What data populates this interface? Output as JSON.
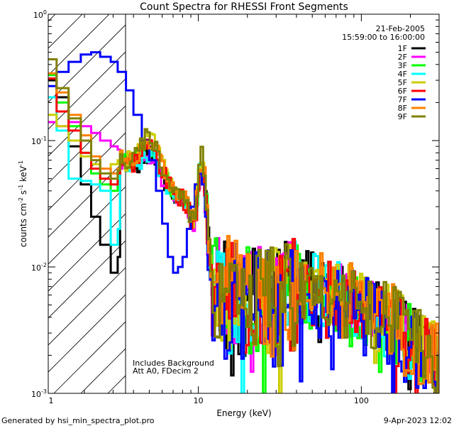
{
  "chart_data": {
    "type": "line",
    "title": "Count Spectra for RHESSI Front Segments",
    "xlabel": "Energy (keV)",
    "ylabel_parts": {
      "a": "counts cm",
      "b": "-2",
      "c": " s",
      "d": "-1",
      "e": " keV",
      "f": "-1"
    },
    "xscale": "log",
    "yscale": "log",
    "xlim": [
      1.2,
      300
    ],
    "ylim": [
      0.001,
      1
    ],
    "x_ticks": [
      {
        "value": 1,
        "label": "1"
      },
      {
        "value": 10,
        "label": "10"
      },
      {
        "value": 100,
        "label": "100"
      }
    ],
    "y_ticks": [
      {
        "value": 0.001,
        "base": "10",
        "exp": "-3"
      },
      {
        "value": 0.01,
        "base": "10",
        "exp": "-2"
      },
      {
        "value": 0.1,
        "base": "10",
        "exp": "-1"
      },
      {
        "value": 1,
        "base": "10",
        "exp": "0"
      }
    ],
    "date": "21-Feb-2005",
    "time_range": "15:59:00 to 16:00:00",
    "annotation_line1": "Includes Background",
    "annotation_line2": "Att A0, FDecim 2",
    "hatched_below_keV": 3,
    "legend_position": "top-right",
    "series": [
      {
        "name": "1F",
        "color": "#000000",
        "bump": 0.55,
        "peak": 1.0,
        "noise": 1.0,
        "knee": 1.0,
        "seed": 1,
        "points": [
          [
            1.2,
            0.3
          ],
          [
            1.35,
            0.22
          ],
          [
            1.6,
            0.09
          ],
          [
            1.9,
            0.045
          ],
          [
            2.2,
            0.025
          ],
          [
            2.5,
            0.015
          ],
          [
            2.9,
            0.009
          ],
          [
            3.2,
            0.012
          ]
        ]
      },
      {
        "name": "2F",
        "color": "#ff00ff",
        "bump": 0.55,
        "peak": 0.8,
        "noise": 1.0,
        "knee": 1.0,
        "seed": 2,
        "points": [
          [
            1.2,
            0.14
          ],
          [
            1.35,
            0.13
          ],
          [
            1.6,
            0.14
          ],
          [
            1.9,
            0.13
          ],
          [
            2.2,
            0.115
          ],
          [
            2.5,
            0.1
          ],
          [
            2.9,
            0.09
          ],
          [
            3.2,
            0.085
          ]
        ]
      },
      {
        "name": "3F",
        "color": "#00ff00",
        "bump": 0.9,
        "peak": 1.2,
        "noise": 1.0,
        "knee": 1.0,
        "seed": 3,
        "points": [
          [
            1.2,
            0.33
          ],
          [
            1.35,
            0.2
          ],
          [
            1.6,
            0.13
          ],
          [
            1.9,
            0.08
          ],
          [
            2.2,
            0.055
          ],
          [
            2.5,
            0.045
          ],
          [
            2.9,
            0.04
          ],
          [
            3.2,
            0.05
          ]
        ]
      },
      {
        "name": "4F",
        "color": "#00ffff",
        "bump": 0.6,
        "peak": 0.9,
        "noise": 1.0,
        "knee": 1.0,
        "seed": 4,
        "points": [
          [
            1.2,
            0.22
          ],
          [
            1.35,
            0.12
          ],
          [
            1.6,
            0.05
          ],
          [
            1.9,
            0.048
          ],
          [
            2.2,
            0.045
          ],
          [
            2.5,
            0.04
          ],
          [
            2.9,
            0.015
          ],
          [
            3.2,
            0.02
          ]
        ]
      },
      {
        "name": "5F",
        "color": "#cccc00",
        "bump": 1.2,
        "peak": 1.0,
        "noise": 1.0,
        "knee": 1.05,
        "seed": 5,
        "points": [
          [
            1.2,
            0.16
          ],
          [
            1.35,
            0.13
          ],
          [
            1.6,
            0.1
          ],
          [
            1.9,
            0.075
          ],
          [
            2.2,
            0.065
          ],
          [
            2.5,
            0.06
          ],
          [
            2.9,
            0.065
          ],
          [
            3.2,
            0.07
          ]
        ]
      },
      {
        "name": "6F",
        "color": "#ff0000",
        "bump": 0.9,
        "peak": 0.9,
        "noise": 1.0,
        "knee": 1.0,
        "seed": 6,
        "points": [
          [
            1.2,
            0.31
          ],
          [
            1.35,
            0.17
          ],
          [
            1.6,
            0.12
          ],
          [
            1.9,
            0.08
          ],
          [
            2.2,
            0.06
          ],
          [
            2.5,
            0.05
          ],
          [
            2.9,
            0.045
          ],
          [
            3.2,
            0.055
          ]
        ]
      },
      {
        "name": "7F",
        "color": "#0000ff",
        "bump": 0.35,
        "peak": 0.55,
        "noise": 1.1,
        "knee": 0.9,
        "seed": 7,
        "points": [
          [
            1.2,
            0.27
          ],
          [
            1.35,
            0.35
          ],
          [
            1.6,
            0.42
          ],
          [
            1.9,
            0.48
          ],
          [
            2.2,
            0.5
          ],
          [
            2.5,
            0.46
          ],
          [
            2.9,
            0.42
          ],
          [
            3.2,
            0.35
          ],
          [
            3.6,
            0.25
          ],
          [
            4.0,
            0.16
          ],
          [
            4.5,
            0.1
          ],
          [
            5.0,
            0.07
          ],
          [
            5.5,
            0.04
          ],
          [
            6.0,
            0.022
          ],
          [
            6.5,
            0.012
          ],
          [
            7.0,
            0.009
          ],
          [
            7.5,
            0.01
          ],
          [
            8.0,
            0.012
          ],
          [
            8.5,
            0.02
          ],
          [
            9.0,
            0.03
          ],
          [
            9.5,
            0.045
          ],
          [
            10.0,
            0.055
          ],
          [
            10.5,
            0.045
          ],
          [
            11.0,
            0.025
          ]
        ]
      },
      {
        "name": "8F",
        "color": "#ff8000",
        "bump": 1.0,
        "peak": 1.1,
        "noise": 1.05,
        "knee": 1.05,
        "seed": 8,
        "points": [
          [
            1.2,
            0.34
          ],
          [
            1.35,
            0.24
          ],
          [
            1.6,
            0.16
          ],
          [
            1.9,
            0.11
          ],
          [
            2.2,
            0.075
          ],
          [
            2.5,
            0.06
          ],
          [
            2.9,
            0.055
          ],
          [
            3.2,
            0.06
          ]
        ]
      },
      {
        "name": "9F",
        "color": "#808000",
        "bump": 1.1,
        "peak": 1.3,
        "noise": 1.0,
        "knee": 1.05,
        "seed": 9,
        "points": [
          [
            1.2,
            0.44
          ],
          [
            1.35,
            0.26
          ],
          [
            1.6,
            0.15
          ],
          [
            1.9,
            0.1
          ],
          [
            2.2,
            0.07
          ],
          [
            2.5,
            0.055
          ],
          [
            2.9,
            0.05
          ],
          [
            3.2,
            0.058
          ]
        ]
      }
    ]
  },
  "footer": {
    "generated_by": "Generated by hsi_min_spectra_plot.pro",
    "timestamp": "9-Apr-2023 12:02"
  }
}
